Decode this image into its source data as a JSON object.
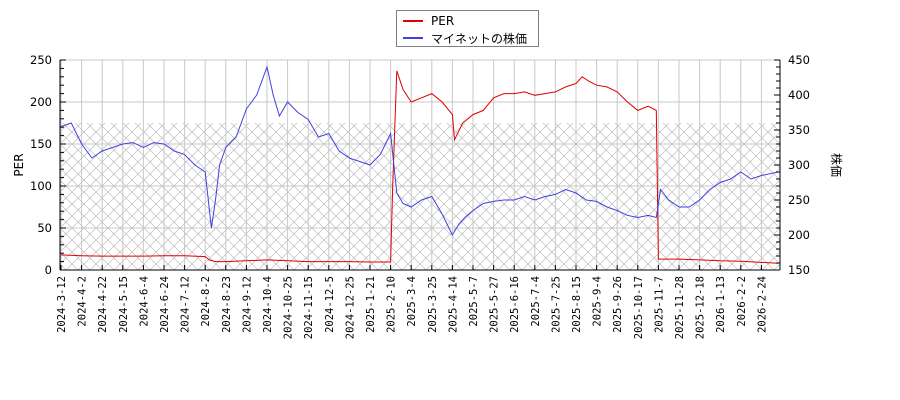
{
  "chart_data": {
    "type": "line",
    "title": "",
    "legend": {
      "position": "top-center",
      "entries": [
        {
          "label": "PER",
          "color": "#e00000",
          "axis": "left"
        },
        {
          "label": "マイネットの株価",
          "color": "#4040e0",
          "axis": "right"
        }
      ]
    },
    "left_axis": {
      "label": "PER",
      "ylim": [
        0,
        250
      ],
      "ticks": [
        0,
        50,
        100,
        150,
        200,
        250
      ]
    },
    "right_axis": {
      "label": "株価",
      "ylim": [
        150,
        450
      ],
      "ticks": [
        150,
        200,
        250,
        300,
        350,
        400,
        450
      ]
    },
    "x_tick_labels": [
      "2024-3-12",
      "2024-4-2",
      "2024-4-22",
      "2024-5-15",
      "2024-6-4",
      "2024-6-24",
      "2024-7-12",
      "2024-8-2",
      "2024-8-23",
      "2024-9-12",
      "2024-10-4",
      "2024-10-25",
      "2024-11-15",
      "2024-12-5",
      "2024-12-25",
      "2025-1-21",
      "2025-2-10",
      "2025-3-4",
      "2025-3-25",
      "2025-4-14",
      "2025-5-7",
      "2025-5-27",
      "2025-6-16",
      "2025-7-4",
      "2025-7-25",
      "2025-8-15",
      "2025-9-4",
      "2025-9-26",
      "2025-10-17",
      "2025-11-7",
      "2025-11-28",
      "2025-12-18",
      "2026-1-13",
      "2026-2-2",
      "2026-2-24"
    ],
    "hatched_region": {
      "left_axis_range": [
        0,
        175
      ],
      "right_axis_range": [
        150,
        350
      ]
    },
    "grid": true,
    "series": [
      {
        "name": "PER",
        "axis": "left",
        "color": "#e00000",
        "x_index": [
          0,
          1,
          2,
          3,
          4,
          5,
          6,
          7,
          7.2,
          7.5,
          8,
          9,
          10,
          11,
          12,
          13,
          14,
          15,
          16,
          16.1,
          16.3,
          16.6,
          17,
          17.5,
          18,
          18.5,
          19,
          19.1,
          19.5,
          20,
          20.5,
          21,
          21.5,
          22,
          22.5,
          23,
          23.5,
          24,
          24.5,
          25,
          25.3,
          25.6,
          26,
          26.5,
          27,
          27.5,
          28,
          28.5,
          28.9,
          29,
          29.5,
          30,
          31,
          32,
          33,
          34,
          34.8
        ],
        "values": [
          18,
          17,
          16.5,
          16.5,
          16.5,
          17,
          17,
          16,
          12,
          10,
          10,
          11,
          12,
          11,
          10,
          10,
          10,
          9.5,
          9.5,
          100,
          237,
          215,
          200,
          205,
          210,
          200,
          185,
          155,
          175,
          185,
          190,
          205,
          210,
          210,
          212,
          208,
          210,
          212,
          218,
          222,
          230,
          225,
          220,
          218,
          212,
          200,
          190,
          195,
          190,
          13,
          13,
          13,
          12,
          11,
          10.5,
          9,
          8
        ]
      },
      {
        "name": "マイネットの株価",
        "axis": "right",
        "color": "#4040e0",
        "x_index": [
          0,
          0.5,
          1,
          1.5,
          2,
          2.5,
          3,
          3.5,
          4,
          4.5,
          5,
          5.5,
          6,
          6.5,
          7,
          7.3,
          7.5,
          7.7,
          8,
          8.5,
          9,
          9.5,
          10,
          10.3,
          10.6,
          11,
          11.5,
          12,
          12.5,
          13,
          13.5,
          14,
          14.5,
          15,
          15.5,
          16,
          16.3,
          16.6,
          17,
          17.5,
          18,
          18.5,
          19,
          19.3,
          19.6,
          20,
          20.5,
          21,
          21.5,
          22,
          22.5,
          23,
          23.5,
          24,
          24.5,
          25,
          25.5,
          26,
          26.5,
          27,
          27.5,
          28,
          28.5,
          28.9,
          29.1,
          29.5,
          30,
          30.5,
          31,
          31.5,
          32,
          32.5,
          33,
          33.5,
          34,
          34.8
        ],
        "values": [
          355,
          360,
          330,
          310,
          320,
          325,
          330,
          332,
          325,
          332,
          330,
          320,
          315,
          300,
          290,
          210,
          250,
          300,
          325,
          340,
          380,
          400,
          440,
          400,
          370,
          390,
          375,
          365,
          340,
          345,
          320,
          310,
          305,
          300,
          315,
          345,
          260,
          245,
          240,
          250,
          255,
          230,
          200,
          215,
          225,
          235,
          245,
          248,
          250,
          250,
          255,
          250,
          255,
          258,
          265,
          260,
          250,
          248,
          240,
          235,
          228,
          225,
          228,
          225,
          265,
          250,
          240,
          240,
          250,
          265,
          275,
          280,
          290,
          280,
          285,
          290
        ]
      }
    ]
  }
}
